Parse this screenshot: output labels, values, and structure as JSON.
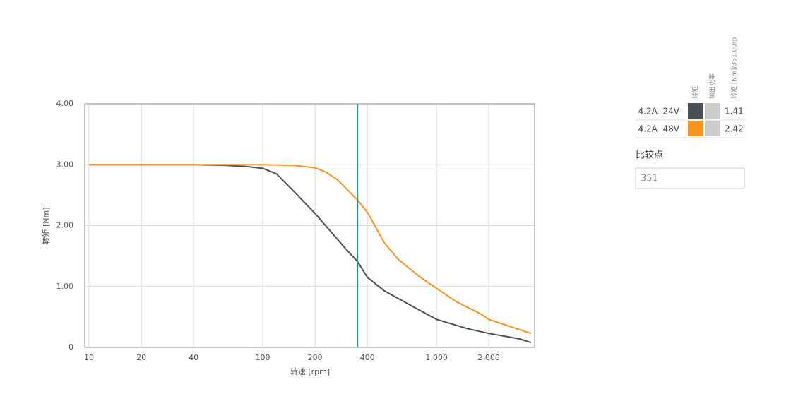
{
  "chart_data": {
    "type": "line",
    "xlabel": "转速 [rpm]",
    "ylabel": "转矩 [Nm]",
    "xscale": "log",
    "grid": true,
    "xlim": [
      9.45,
      3670
    ],
    "ylim": [
      0,
      4
    ],
    "xticks": [
      10,
      20,
      40,
      100,
      200,
      400,
      {
        "value": 1000,
        "label": "1 000"
      },
      {
        "value": 2000,
        "label": "2 000"
      }
    ],
    "yticks": [
      0,
      {
        "value": 1,
        "label": "1.00"
      },
      {
        "value": 2,
        "label": "2.00"
      },
      {
        "value": 3,
        "label": "3.00"
      },
      {
        "value": 4,
        "label": "4.00"
      }
    ],
    "series": [
      {
        "name": "4.2A  24V",
        "color": "#4a5059",
        "x": [
          10,
          20,
          40,
          60,
          80,
          100,
          120,
          150,
          200,
          250,
          300,
          351,
          400,
          500,
          700,
          1000,
          1500,
          2000,
          3000,
          3500
        ],
        "values": [
          3.0,
          3.0,
          3.0,
          2.99,
          2.97,
          2.94,
          2.85,
          2.57,
          2.2,
          1.88,
          1.62,
          1.41,
          1.15,
          0.93,
          0.7,
          0.46,
          0.31,
          0.23,
          0.14,
          0.08
        ]
      },
      {
        "name": "4.2A  48V",
        "color": "#f7941d",
        "x": [
          10,
          20,
          40,
          80,
          100,
          150,
          200,
          230,
          270,
          351,
          400,
          500,
          600,
          800,
          1000,
          1300,
          1800,
          2000,
          3500
        ],
        "values": [
          3.0,
          3.0,
          3.0,
          3.0,
          3.0,
          2.99,
          2.95,
          2.88,
          2.75,
          2.42,
          2.22,
          1.72,
          1.45,
          1.16,
          0.97,
          0.75,
          0.55,
          0.46,
          0.23
        ]
      }
    ],
    "marker_color": "#1a9ba5"
  },
  "panel": {
    "headers": [
      "转矩",
      "输出功率",
      "转矩 [Nm]/351.00rp"
    ],
    "power_color": "#cccccc",
    "values": [
      1.41,
      2.42
    ],
    "compare_label": "比较点",
    "compare_value": 351
  }
}
